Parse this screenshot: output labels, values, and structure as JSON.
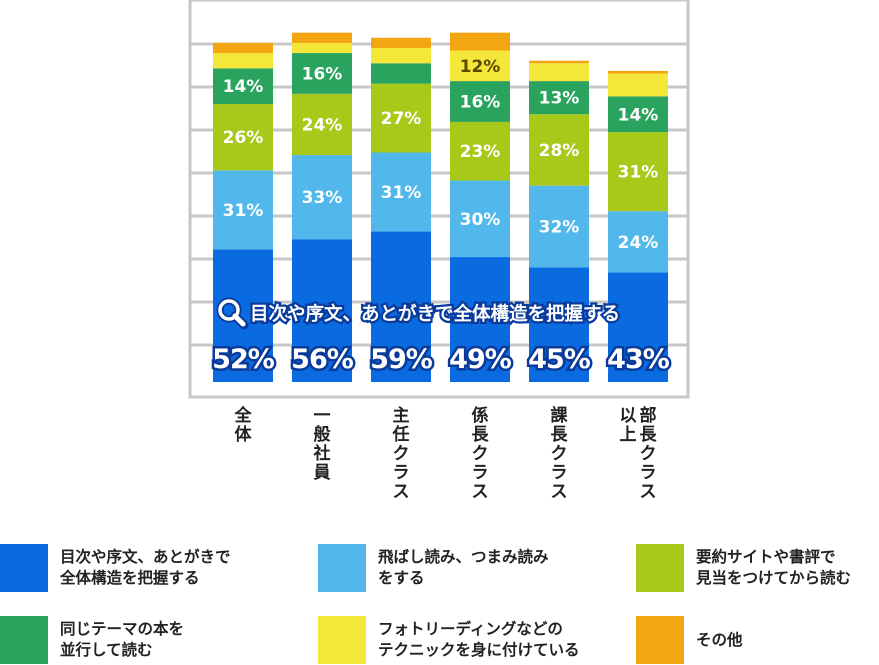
{
  "chart_data": {
    "type": "bar",
    "stacked": true,
    "categories": [
      "全体",
      "一般社員",
      "主任クラス",
      "係長クラス",
      "課長クラス",
      "部長クラス以上"
    ],
    "series": [
      {
        "name": "目次や序文、あとがきで\n全体構造を把握する",
        "color": "#0a6be0",
        "values": [
          52,
          56,
          59,
          49,
          45,
          43
        ]
      },
      {
        "name": "飛ばし読み、つまみ読み\nをする",
        "color": "#52b7ea",
        "values": [
          31,
          33,
          31,
          30,
          32,
          24
        ]
      },
      {
        "name": "要約サイトや書評で\n見当をつけてから読む",
        "color": "#a8c91a",
        "values": [
          26,
          24,
          27,
          23,
          28,
          31
        ]
      },
      {
        "name": "同じテーマの本を\n並行して読む",
        "color": "#2aa35f",
        "values": [
          14,
          16,
          8,
          16,
          13,
          14
        ]
      },
      {
        "name": "フォトリーディングなどの\nテクニックを身に付けている",
        "color": "#f5e63a",
        "values": [
          6,
          4,
          6,
          12,
          7,
          9
        ]
      },
      {
        "name": "その他",
        "color": "#f3a512",
        "values": [
          4,
          4,
          4,
          7,
          1,
          1
        ]
      }
    ],
    "segment_labels": [
      [
        "",
        "31%",
        "26%",
        "14%",
        "",
        ""
      ],
      [
        "",
        "33%",
        "24%",
        "16%",
        "",
        ""
      ],
      [
        "",
        "31%",
        "27%",
        "",
        "",
        ""
      ],
      [
        "",
        "30%",
        "23%",
        "16%",
        "12%",
        ""
      ],
      [
        "",
        "32%",
        "28%",
        "13%",
        "",
        ""
      ],
      [
        "",
        "24%",
        "31%",
        "14%",
        "",
        ""
      ]
    ],
    "annotation": "目次や序文、あとがきで全体構造を把握する",
    "annotation_values": [
      "52%",
      "56%",
      "59%",
      "49%",
      "45%",
      "43%"
    ],
    "ylim": [
      0,
      145
    ],
    "grid": true,
    "legend_position": "bottom"
  },
  "colors": {
    "frame": "#c7c7c7",
    "grid": "#c7c7c7",
    "annotation_stroke": "#0a3a9a",
    "search_icon": "#0a5fd0"
  },
  "icons": {
    "annotation_icon": "search-icon"
  }
}
